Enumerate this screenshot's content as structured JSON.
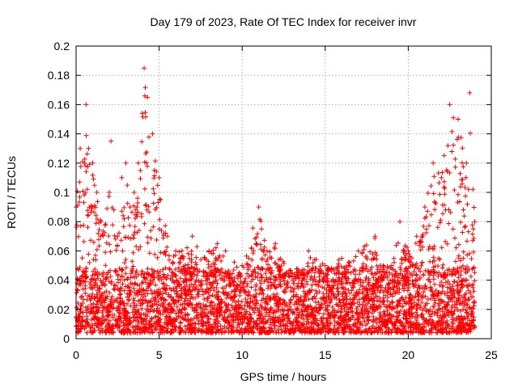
{
  "chart_data": {
    "type": "scatter",
    "title": "Day 179 of 2023, Rate Of TEC Index for receiver invr",
    "xlabel": "GPS time / hours",
    "ylabel": "ROTI / TECUs",
    "xlim": [
      0,
      25
    ],
    "ylim": [
      0,
      0.2
    ],
    "xticks": [
      0,
      5,
      10,
      15,
      20,
      25
    ],
    "yticks": [
      0,
      0.02,
      0.04,
      0.06,
      0.08,
      0.1,
      0.12,
      0.14,
      0.16,
      0.18,
      0.2
    ],
    "grid": true,
    "legend": "none",
    "marker": "plus",
    "series_color": "#ff0000",
    "time_span_hours": [
      0,
      24
    ],
    "envelope": [
      [
        0.0,
        0.09
      ],
      [
        0.25,
        0.13
      ],
      [
        0.5,
        0.12
      ],
      [
        0.6,
        0.16
      ],
      [
        0.75,
        0.13
      ],
      [
        1.0,
        0.12
      ],
      [
        1.25,
        0.1
      ],
      [
        1.5,
        0.08
      ],
      [
        2.0,
        0.1
      ],
      [
        2.1,
        0.135
      ],
      [
        2.5,
        0.07
      ],
      [
        2.75,
        0.11
      ],
      [
        3.0,
        0.12
      ],
      [
        3.25,
        0.09
      ],
      [
        3.5,
        0.1
      ],
      [
        3.75,
        0.12
      ],
      [
        4.1,
        0.185
      ],
      [
        4.3,
        0.165
      ],
      [
        4.6,
        0.14
      ],
      [
        5.0,
        0.11
      ],
      [
        5.5,
        0.07
      ],
      [
        6.0,
        0.06
      ],
      [
        7.0,
        0.07
      ],
      [
        8.0,
        0.06
      ],
      [
        8.5,
        0.065
      ],
      [
        9.0,
        0.06
      ],
      [
        10.0,
        0.05
      ],
      [
        11.0,
        0.09
      ],
      [
        11.5,
        0.06
      ],
      [
        12.0,
        0.065
      ],
      [
        13.0,
        0.045
      ],
      [
        14.0,
        0.06
      ],
      [
        15.0,
        0.05
      ],
      [
        16.0,
        0.055
      ],
      [
        17.0,
        0.06
      ],
      [
        18.0,
        0.07
      ],
      [
        18.5,
        0.05
      ],
      [
        19.0,
        0.05
      ],
      [
        19.5,
        0.08
      ],
      [
        20.0,
        0.06
      ],
      [
        20.5,
        0.07
      ],
      [
        21.0,
        0.09
      ],
      [
        21.5,
        0.12
      ],
      [
        22.0,
        0.11
      ],
      [
        22.5,
        0.16
      ],
      [
        23.0,
        0.15
      ],
      [
        23.5,
        0.12
      ],
      [
        23.7,
        0.168
      ],
      [
        24.0,
        0.08
      ]
    ]
  }
}
